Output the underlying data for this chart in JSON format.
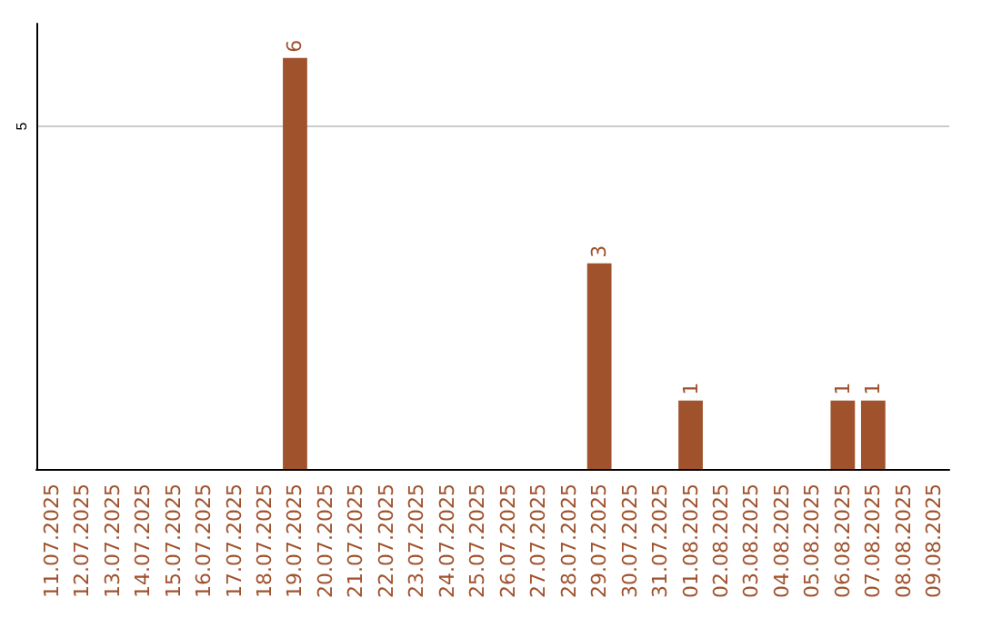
{
  "chart_data": {
    "type": "bar",
    "categories": [
      "11.07.2025",
      "12.07.2025",
      "13.07.2025",
      "14.07.2025",
      "15.07.2025",
      "16.07.2025",
      "17.07.2025",
      "18.07.2025",
      "19.07.2025",
      "20.07.2025",
      "21.07.2025",
      "22.07.2025",
      "23.07.2025",
      "24.07.2025",
      "25.07.2025",
      "26.07.2025",
      "27.07.2025",
      "28.07.2025",
      "29.07.2025",
      "30.07.2025",
      "31.07.2025",
      "01.08.2025",
      "02.08.2025",
      "03.08.2025",
      "04.08.2025",
      "05.08.2025",
      "06.08.2025",
      "07.08.2025",
      "08.08.2025",
      "09.08.2025"
    ],
    "values": [
      null,
      null,
      null,
      null,
      null,
      null,
      null,
      null,
      6,
      null,
      null,
      null,
      null,
      null,
      null,
      null,
      null,
      null,
      3,
      null,
      null,
      1,
      null,
      null,
      null,
      null,
      1,
      1,
      null,
      null
    ],
    "color": "#a0522d",
    "ylim": [
      0,
      6.5
    ],
    "yticks": [
      5
    ],
    "grid": "y",
    "data_labels": true
  }
}
